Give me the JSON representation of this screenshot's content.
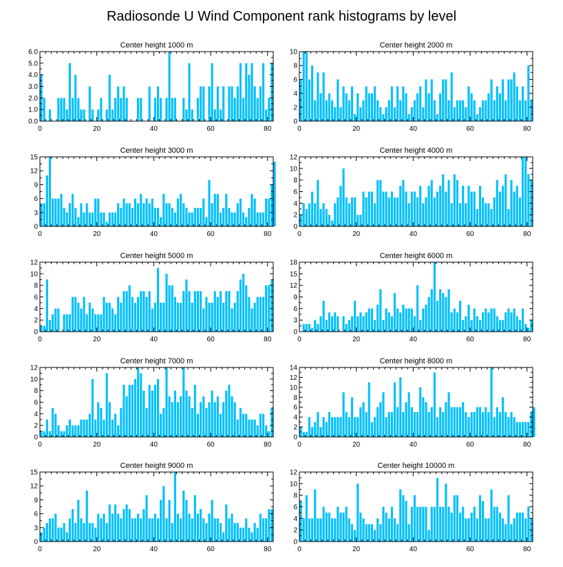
{
  "chart_data": {
    "type": "bar",
    "title": "Radiosonde U Wind Component rank histograms by level",
    "xlim": [
      0,
      82
    ],
    "xticks": [
      0,
      20,
      40,
      60,
      80
    ],
    "bar_color": "#00BFFF",
    "panels": [
      {
        "title": "Center height 1000 m",
        "ylim": [
          0,
          6
        ],
        "yticks": [
          "0.0",
          "1.0",
          "2.0",
          "3.0",
          "4.0",
          "5.0",
          "6.0"
        ],
        "values": [
          4,
          2,
          0,
          1,
          0,
          0,
          2,
          2,
          2,
          1,
          5,
          2,
          4,
          2,
          1,
          1,
          0,
          3,
          1,
          0,
          1,
          2,
          0,
          1,
          4,
          1,
          2,
          3,
          2,
          3,
          2,
          0,
          0,
          0,
          2,
          2,
          0,
          0,
          3,
          0,
          2,
          3,
          2,
          0,
          2,
          6,
          2,
          2,
          0,
          0,
          2,
          1,
          5,
          1,
          0,
          2,
          3,
          3,
          0,
          3,
          5,
          1,
          3,
          1,
          3,
          0,
          3,
          3,
          2,
          3,
          5,
          2,
          5,
          4,
          5,
          3,
          2,
          3,
          5,
          1,
          2,
          5
        ]
      },
      {
        "title": "Center height 2000 m",
        "ylim": [
          0,
          10
        ],
        "yticks": [
          "0",
          "2",
          "4",
          "6",
          "8",
          "10"
        ],
        "values": [
          6,
          10,
          10,
          6,
          8,
          3,
          7,
          4,
          7,
          3,
          4,
          3,
          2,
          6,
          2,
          5,
          4,
          3,
          5,
          1,
          4,
          2,
          3,
          5,
          4,
          4,
          5,
          3,
          2,
          1,
          2,
          3,
          5,
          2,
          5,
          3,
          5,
          4,
          1,
          2,
          3,
          4,
          5,
          2,
          6,
          4,
          6,
          3,
          1,
          4,
          6,
          6,
          3,
          7,
          2,
          3,
          3,
          3,
          2,
          5,
          4,
          3,
          1,
          2,
          3,
          3,
          4,
          6,
          3,
          5,
          4,
          6,
          3,
          6,
          6,
          7,
          5,
          3,
          5,
          3,
          8,
          3
        ]
      },
      {
        "title": "Center height 3000 m",
        "ylim": [
          0,
          15
        ],
        "yticks": [
          "0",
          "3",
          "6",
          "9",
          "12",
          "15"
        ],
        "values": [
          5,
          5,
          11,
          15,
          6,
          6,
          6,
          7,
          4,
          3,
          5,
          7,
          4,
          2,
          5,
          3,
          5,
          3,
          3,
          6,
          6,
          3,
          3,
          1,
          3,
          3,
          3,
          5,
          4,
          6,
          5,
          5,
          4,
          6,
          5,
          7,
          5,
          6,
          5,
          6,
          4,
          4,
          2,
          7,
          5,
          5,
          4,
          3,
          6,
          7,
          5,
          4,
          3,
          3,
          4,
          4,
          4,
          6,
          2,
          10,
          5,
          7,
          7,
          3,
          4,
          7,
          4,
          3,
          3,
          5,
          6,
          3,
          2,
          4,
          7,
          6,
          3,
          3,
          3,
          6,
          6,
          9,
          14
        ]
      },
      {
        "title": "Center height 4000 m",
        "ylim": [
          0,
          12
        ],
        "yticks": [
          "0",
          "2",
          "4",
          "6",
          "8",
          "10",
          "12"
        ],
        "values": [
          2,
          4,
          3,
          4,
          6,
          4,
          8,
          3,
          4,
          3,
          2,
          1,
          4,
          5,
          7,
          10,
          5,
          4,
          5,
          5,
          2,
          2,
          6,
          5,
          6,
          6,
          4,
          8,
          8,
          6,
          6,
          5,
          6,
          5,
          5,
          7,
          8,
          6,
          4,
          6,
          6,
          5,
          7,
          4,
          5,
          7,
          8,
          5,
          6,
          7,
          9,
          6,
          8,
          4,
          9,
          8,
          4,
          7,
          4,
          7,
          6,
          6,
          3,
          7,
          5,
          4,
          4,
          3,
          5,
          8,
          6,
          7,
          9,
          3,
          8,
          6,
          7,
          5,
          12,
          12,
          9,
          8
        ]
      },
      {
        "title": "Center height 5000 m",
        "ylim": [
          0,
          12
        ],
        "yticks": [
          "0",
          "2",
          "4",
          "6",
          "8",
          "10",
          "12"
        ],
        "values": [
          1,
          1,
          9,
          2,
          3,
          4,
          4,
          0,
          3,
          3,
          3,
          6,
          6,
          5,
          4,
          6,
          3,
          5,
          4,
          3,
          3,
          3,
          6,
          5,
          5,
          4,
          3,
          6,
          5,
          7,
          7,
          8,
          6,
          5,
          6,
          7,
          7,
          6,
          7,
          4,
          5,
          11,
          5,
          5,
          10,
          8,
          8,
          6,
          5,
          5,
          7,
          9,
          7,
          5,
          7,
          7,
          7,
          4,
          6,
          5,
          5,
          7,
          6,
          7,
          5,
          7,
          7,
          4,
          5,
          7,
          9,
          10,
          8,
          6,
          4,
          5,
          6,
          6,
          6,
          8,
          8,
          9
        ]
      },
      {
        "title": "Center height 6000 m",
        "ylim": [
          0,
          18
        ],
        "yticks": [
          "0",
          "3",
          "6",
          "9",
          "12",
          "15",
          "18"
        ],
        "values": [
          0,
          2,
          2,
          2,
          1,
          3,
          2,
          4,
          8,
          3,
          5,
          4,
          5,
          4,
          0,
          4,
          2,
          3,
          4,
          8,
          4,
          5,
          4,
          5,
          6,
          6,
          3,
          7,
          11,
          3,
          6,
          5,
          4,
          10,
          6,
          5,
          7,
          6,
          6,
          6,
          4,
          12,
          3,
          6,
          7,
          9,
          11,
          18,
          8,
          11,
          10,
          9,
          11,
          5,
          6,
          5,
          8,
          3,
          4,
          7,
          3,
          6,
          4,
          3,
          5,
          6,
          5,
          6,
          6,
          4,
          3,
          3,
          5,
          6,
          5,
          6,
          4,
          3,
          6,
          2,
          1,
          3
        ]
      },
      {
        "title": "Center height 7000 m",
        "ylim": [
          0,
          12
        ],
        "yticks": [
          "0",
          "2",
          "4",
          "6",
          "8",
          "10",
          "12"
        ],
        "values": [
          1,
          1,
          3,
          1,
          5,
          4,
          2,
          1,
          1,
          2,
          3,
          2,
          2,
          2,
          3,
          3,
          3,
          4,
          10,
          3,
          6,
          5,
          3,
          11,
          6,
          3,
          4,
          2,
          5,
          9,
          7,
          9,
          9,
          10,
          12,
          11,
          8,
          5,
          9,
          8,
          9,
          10,
          4,
          5,
          12,
          7,
          6,
          8,
          6,
          7,
          12,
          8,
          7,
          5,
          9,
          4,
          6,
          7,
          5,
          6,
          8,
          6,
          7,
          4,
          6,
          8,
          9,
          7,
          6,
          3,
          5,
          4,
          4,
          3,
          3,
          3,
          2,
          4,
          4,
          2,
          1,
          5
        ]
      },
      {
        "title": "Center height 8000 m",
        "ylim": [
          0,
          14
        ],
        "yticks": [
          "0",
          "2",
          "4",
          "6",
          "8",
          "10",
          "12",
          "14"
        ],
        "values": [
          2,
          1,
          1,
          4,
          2,
          3,
          5,
          2,
          4,
          3,
          5,
          4,
          4,
          4,
          4,
          9,
          5,
          4,
          8,
          4,
          4,
          6,
          7,
          5,
          11,
          3,
          4,
          6,
          7,
          9,
          4,
          5,
          5,
          11,
          6,
          12,
          5,
          7,
          9,
          6,
          5,
          5,
          10,
          8,
          7,
          5,
          6,
          13,
          4,
          6,
          5,
          7,
          9,
          6,
          6,
          6,
          6,
          7,
          5,
          4,
          5,
          5,
          6,
          6,
          5,
          6,
          5,
          14,
          4,
          6,
          5,
          8,
          5,
          4,
          5,
          4,
          3,
          3,
          3,
          3,
          3,
          5,
          6
        ]
      },
      {
        "title": "Center height 9000 m",
        "ylim": [
          0,
          15
        ],
        "yticks": [
          "0",
          "3",
          "6",
          "9",
          "12",
          "15"
        ],
        "values": [
          2,
          3,
          4,
          5,
          5,
          6,
          3,
          3,
          4,
          2,
          5,
          7,
          4,
          9,
          5,
          4,
          11,
          4,
          4,
          3,
          6,
          5,
          6,
          4,
          8,
          6,
          8,
          6,
          5,
          7,
          8,
          7,
          5,
          5,
          6,
          5,
          7,
          10,
          5,
          5,
          6,
          5,
          9,
          12,
          5,
          9,
          4,
          15,
          6,
          5,
          11,
          9,
          6,
          5,
          10,
          6,
          7,
          5,
          4,
          6,
          9,
          5,
          5,
          4,
          2,
          8,
          5,
          6,
          4,
          4,
          3,
          3,
          5,
          3,
          2,
          4,
          3,
          6,
          5,
          5,
          7,
          7
        ]
      },
      {
        "title": "Center height 10000 m",
        "ylim": [
          0,
          12
        ],
        "yticks": [
          "0",
          "2",
          "4",
          "6",
          "8",
          "10",
          "12"
        ],
        "values": [
          7,
          4,
          8,
          4,
          4,
          9,
          4,
          4,
          6,
          5,
          5,
          4,
          4,
          6,
          5,
          5,
          6,
          4,
          3,
          2,
          10,
          5,
          4,
          3,
          3,
          3,
          2,
          4,
          3,
          6,
          5,
          4,
          6,
          4,
          3,
          9,
          8,
          7,
          3,
          6,
          8,
          6,
          6,
          6,
          6,
          2,
          6,
          6,
          11,
          6,
          6,
          10,
          6,
          5,
          8,
          8,
          5,
          6,
          4,
          4,
          5,
          6,
          4,
          8,
          7,
          4,
          4,
          9,
          6,
          6,
          5,
          4,
          3,
          8,
          3,
          4,
          5,
          5,
          5,
          4,
          6,
          4
        ]
      }
    ]
  }
}
